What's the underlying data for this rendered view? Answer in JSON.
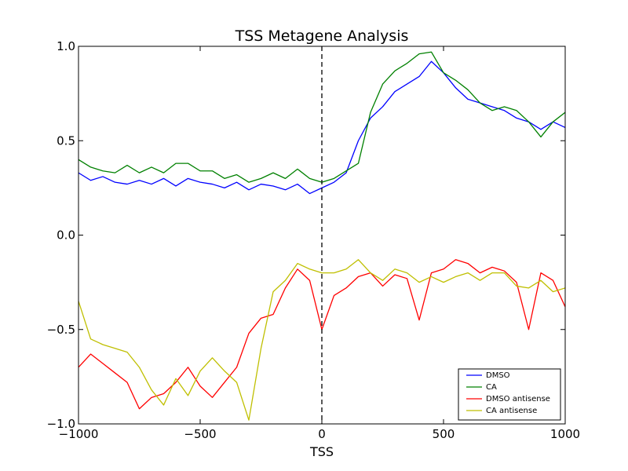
{
  "chart_data": {
    "type": "line",
    "title": "TSS Metagene Analysis",
    "xlabel": "TSS",
    "ylabel": "",
    "xlim": [
      -1000,
      1000
    ],
    "ylim": [
      -1.0,
      1.0
    ],
    "xticks": [
      -1000,
      -500,
      0,
      500,
      1000
    ],
    "xtick_labels": [
      "−1000",
      "−500",
      "0",
      "500",
      "1000"
    ],
    "yticks": [
      1.0,
      0.5,
      0.0,
      -0.5,
      -1.0
    ],
    "ytick_labels": [
      "1.0",
      "0.5",
      "0.0",
      "−0.5",
      "−1.0"
    ],
    "grid": false,
    "legend_position": "lower-right",
    "reference_line": {
      "x": 0,
      "style": "dashed",
      "color": "#000000"
    },
    "series": [
      {
        "name": "DMSO",
        "color": "#0000ff",
        "x": [
          -1000,
          -950,
          -900,
          -850,
          -800,
          -750,
          -700,
          -650,
          -600,
          -550,
          -500,
          -450,
          -400,
          -350,
          -300,
          -250,
          -200,
          -150,
          -100,
          -50,
          0,
          50,
          100,
          150,
          200,
          250,
          300,
          350,
          400,
          450,
          500,
          550,
          600,
          650,
          700,
          750,
          800,
          850,
          900,
          950,
          1000
        ],
        "values": [
          0.33,
          0.29,
          0.31,
          0.28,
          0.27,
          0.29,
          0.27,
          0.3,
          0.26,
          0.3,
          0.28,
          0.27,
          0.25,
          0.28,
          0.24,
          0.27,
          0.26,
          0.24,
          0.27,
          0.22,
          0.25,
          0.28,
          0.33,
          0.5,
          0.62,
          0.68,
          0.76,
          0.8,
          0.84,
          0.92,
          0.86,
          0.78,
          0.72,
          0.7,
          0.68,
          0.66,
          0.62,
          0.6,
          0.56,
          0.6,
          0.57
        ]
      },
      {
        "name": "CA",
        "color": "#008000",
        "x": [
          -1000,
          -950,
          -900,
          -850,
          -800,
          -750,
          -700,
          -650,
          -600,
          -550,
          -500,
          -450,
          -400,
          -350,
          -300,
          -250,
          -200,
          -150,
          -100,
          -50,
          0,
          50,
          100,
          150,
          200,
          250,
          300,
          350,
          400,
          450,
          500,
          550,
          600,
          650,
          700,
          750,
          800,
          850,
          900,
          950,
          1000
        ],
        "values": [
          0.4,
          0.36,
          0.34,
          0.33,
          0.37,
          0.33,
          0.36,
          0.33,
          0.38,
          0.38,
          0.34,
          0.34,
          0.3,
          0.32,
          0.28,
          0.3,
          0.33,
          0.3,
          0.35,
          0.3,
          0.28,
          0.3,
          0.34,
          0.38,
          0.65,
          0.8,
          0.87,
          0.91,
          0.96,
          0.97,
          0.86,
          0.82,
          0.77,
          0.7,
          0.66,
          0.68,
          0.66,
          0.6,
          0.52,
          0.6,
          0.65
        ]
      },
      {
        "name": "DMSO antisense",
        "color": "#ff0000",
        "x": [
          -1000,
          -950,
          -900,
          -850,
          -800,
          -750,
          -700,
          -650,
          -600,
          -550,
          -500,
          -450,
          -400,
          -350,
          -300,
          -250,
          -200,
          -150,
          -100,
          -50,
          0,
          50,
          100,
          150,
          200,
          250,
          300,
          350,
          400,
          450,
          500,
          550,
          600,
          650,
          700,
          750,
          800,
          850,
          900,
          950,
          1000
        ],
        "values": [
          -0.7,
          -0.63,
          -0.68,
          -0.73,
          -0.78,
          -0.92,
          -0.86,
          -0.84,
          -0.78,
          -0.7,
          -0.8,
          -0.86,
          -0.78,
          -0.7,
          -0.52,
          -0.44,
          -0.42,
          -0.28,
          -0.18,
          -0.24,
          -0.5,
          -0.32,
          -0.28,
          -0.22,
          -0.2,
          -0.27,
          -0.21,
          -0.23,
          -0.45,
          -0.2,
          -0.18,
          -0.13,
          -0.15,
          -0.2,
          -0.17,
          -0.19,
          -0.25,
          -0.5,
          -0.2,
          -0.24,
          -0.38
        ]
      },
      {
        "name": "CA antisense",
        "color": "#bfbf00",
        "x": [
          -1000,
          -950,
          -900,
          -850,
          -800,
          -750,
          -700,
          -650,
          -600,
          -550,
          -500,
          -450,
          -400,
          -350,
          -300,
          -250,
          -200,
          -150,
          -100,
          -50,
          0,
          50,
          100,
          150,
          200,
          250,
          300,
          350,
          400,
          450,
          500,
          550,
          600,
          650,
          700,
          750,
          800,
          850,
          900,
          950,
          1000
        ],
        "values": [
          -0.35,
          -0.55,
          -0.58,
          -0.6,
          -0.62,
          -0.7,
          -0.82,
          -0.9,
          -0.76,
          -0.85,
          -0.72,
          -0.65,
          -0.72,
          -0.78,
          -0.98,
          -0.6,
          -0.3,
          -0.24,
          -0.15,
          -0.18,
          -0.2,
          -0.2,
          -0.18,
          -0.13,
          -0.2,
          -0.24,
          -0.18,
          -0.2,
          -0.25,
          -0.22,
          -0.25,
          -0.22,
          -0.2,
          -0.24,
          -0.2,
          -0.2,
          -0.27,
          -0.28,
          -0.24,
          -0.3,
          -0.28
        ]
      }
    ]
  }
}
